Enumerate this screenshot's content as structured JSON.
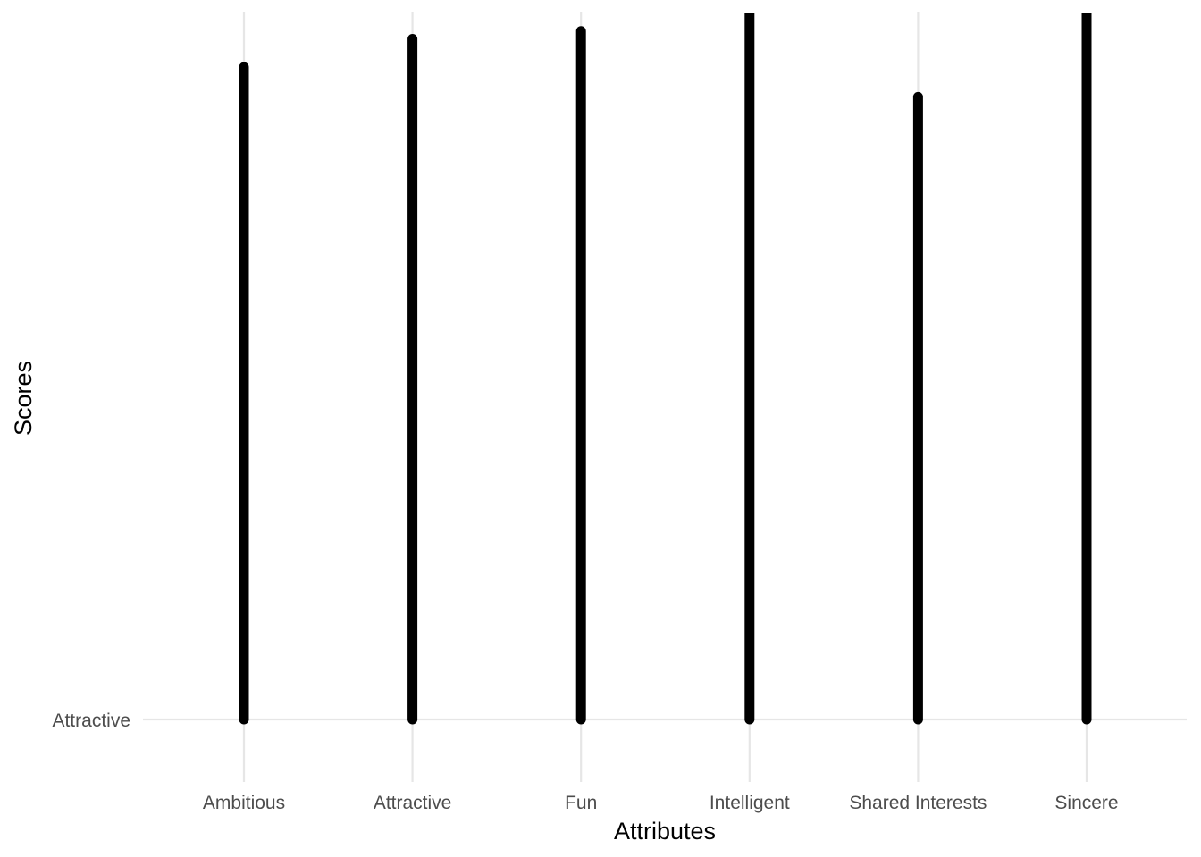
{
  "chart_data": {
    "type": "bar",
    "title": "",
    "xlabel": "Attributes",
    "ylabel": "Scores",
    "categories": [
      "Ambitious",
      "Attractive",
      "Fun",
      "Intelligent",
      "Shared Interests",
      "Sincere"
    ],
    "y_tick_labels": [
      "Attractive"
    ],
    "values": [
      0.924,
      0.964,
      0.975,
      1.0,
      0.882,
      1.0
    ],
    "ylim": [
      0,
      1
    ],
    "grid": true,
    "legend": "none",
    "colors": {
      "bars": "#000000",
      "grid": "#e6e6e6",
      "tick_text": "#4d4d4d",
      "title_text": "#000000"
    }
  }
}
